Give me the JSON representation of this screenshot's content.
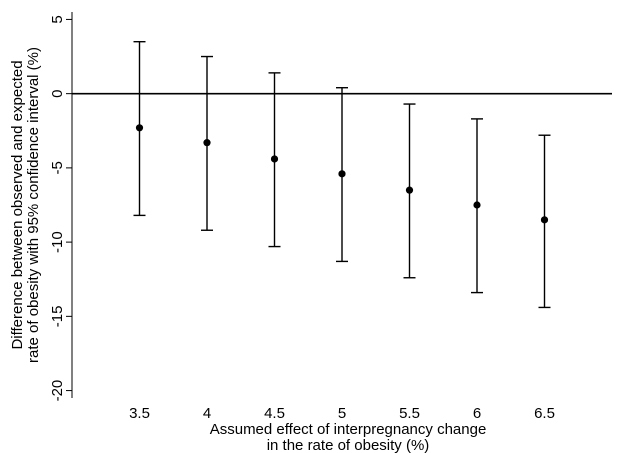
{
  "chart_data": {
    "type": "scatter",
    "title": "",
    "xlabel": [
      "Assumed effect of interpregnancy change",
      "in the rate of obesity (%)"
    ],
    "ylabel": [
      "Difference between observed and expected",
      "rate of obesity with 95% confidence interval (%)"
    ],
    "x": [
      3.5,
      4,
      4.5,
      5,
      5.5,
      6,
      6.5
    ],
    "x_tick_labels": [
      "3.5",
      "4",
      "4.5",
      "5",
      "5.5",
      "6",
      "6.5"
    ],
    "y_ticks": [
      5,
      0,
      -5,
      -10,
      -15,
      -20
    ],
    "y_tick_labels": [
      "5",
      "0",
      "-5",
      "-10",
      "-15",
      "-20"
    ],
    "xlim": [
      3.0,
      7.0
    ],
    "ylim": [
      -20.5,
      5.5
    ],
    "reference_line_y": 0,
    "series": [
      {
        "estimate": [
          -2.3,
          -3.3,
          -4.4,
          -5.4,
          -6.5,
          -7.5,
          -8.5
        ],
        "ci_lower": [
          -8.2,
          -9.2,
          -10.3,
          -11.3,
          -12.4,
          -13.4,
          -14.4
        ],
        "ci_upper": [
          3.5,
          2.5,
          1.4,
          0.4,
          -0.7,
          -1.7,
          -2.8
        ]
      }
    ],
    "grid": false,
    "legend": "none"
  }
}
